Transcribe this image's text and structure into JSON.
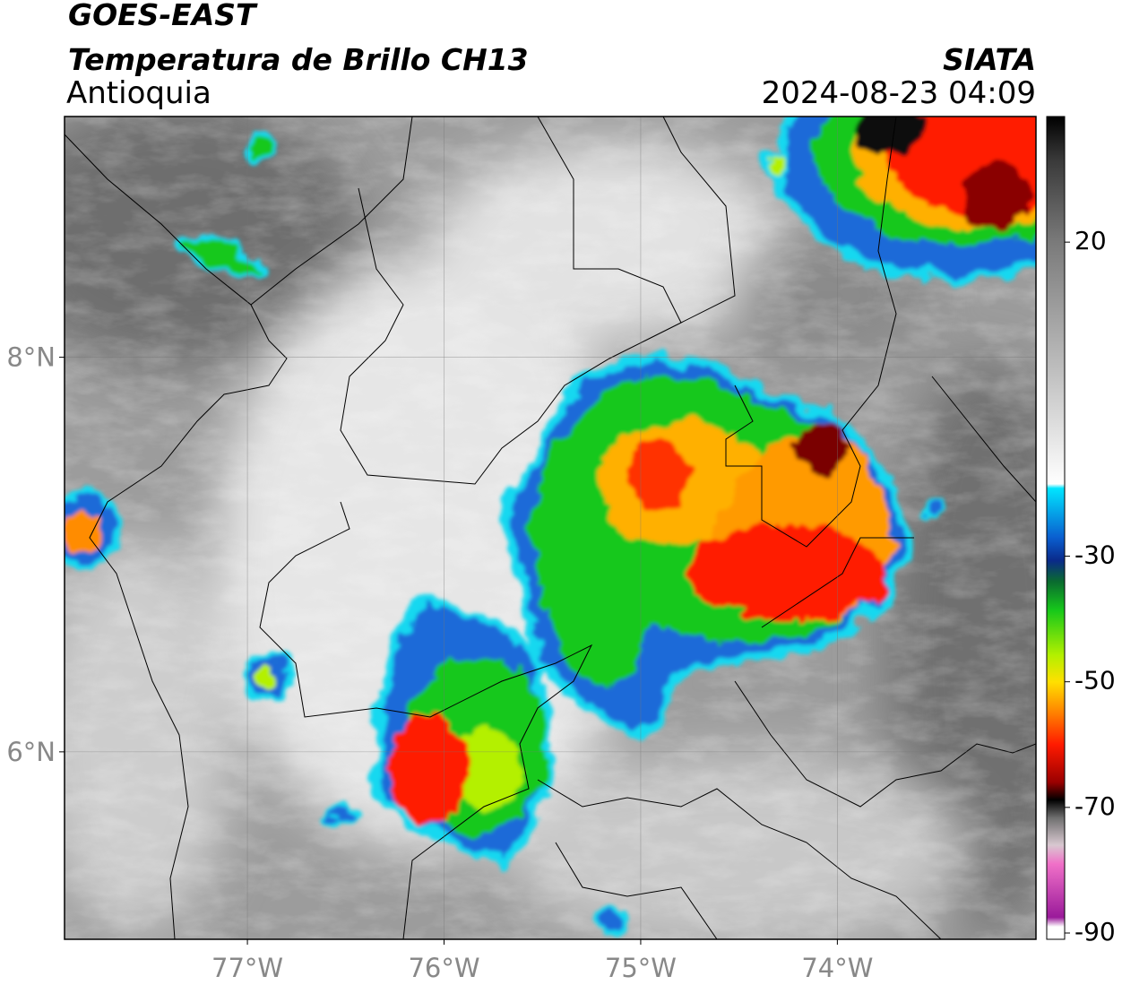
{
  "map": {
    "title": "GOES-EAST",
    "subtitle": "Temperatura de Brillo CH13",
    "region": "Antioquia",
    "source": "SIATA",
    "datetime": "2024-08-23 04:09",
    "xlim": [
      -77.93,
      -72.99
    ],
    "ylim": [
      5.05,
      9.22
    ],
    "xticks": [
      {
        "value": -77,
        "label": "77°W"
      },
      {
        "value": -76,
        "label": "76°W"
      },
      {
        "value": -75,
        "label": "75°W"
      },
      {
        "value": -74,
        "label": "74°W"
      }
    ],
    "yticks": [
      {
        "value": 6,
        "label": "6°N"
      },
      {
        "value": 8,
        "label": "8°N"
      }
    ],
    "grid": true,
    "colorbar": {
      "lim": [
        -91,
        40
      ],
      "ticks": [
        20,
        -30,
        -50,
        -70,
        -90
      ],
      "stops": [
        {
          "value": 40,
          "color": "#000000"
        },
        {
          "value": 33,
          "color": "#3a3a3a"
        },
        {
          "value": 20,
          "color": "#7a7a7a"
        },
        {
          "value": 0,
          "color": "#bdbdbd"
        },
        {
          "value": -18.5,
          "color": "#ffffff"
        },
        {
          "value": -19.2,
          "color": "#00e5ff"
        },
        {
          "value": -27,
          "color": "#0a5fd0"
        },
        {
          "value": -30.7,
          "color": "#0a2a8a"
        },
        {
          "value": -34,
          "color": "#0a6a30"
        },
        {
          "value": -38.6,
          "color": "#16c81a"
        },
        {
          "value": -45.8,
          "color": "#b4f000"
        },
        {
          "value": -50,
          "color": "#ffe000"
        },
        {
          "value": -54.4,
          "color": "#ff8c00"
        },
        {
          "value": -60,
          "color": "#ff1a00"
        },
        {
          "value": -66,
          "color": "#9a0000"
        },
        {
          "value": -68.8,
          "color": "#000000"
        },
        {
          "value": -71.7,
          "color": "#707070"
        },
        {
          "value": -76,
          "color": "#d8c8d0"
        },
        {
          "value": -79,
          "color": "#f070c8"
        },
        {
          "value": -87.5,
          "color": "#9a1a9a"
        },
        {
          "value": -89,
          "color": "#ffffff"
        }
      ]
    }
  }
}
